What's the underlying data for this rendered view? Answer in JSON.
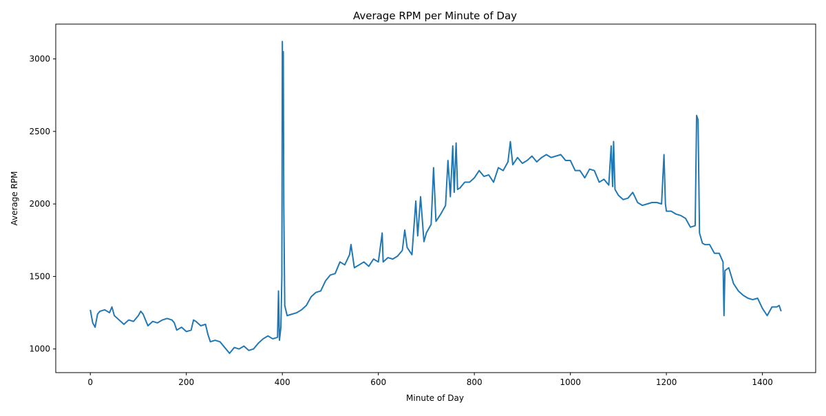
{
  "chart_data": {
    "type": "line",
    "title": "Average RPM per Minute of Day",
    "xlabel": "Minute of Day",
    "ylabel": "Average RPM",
    "x": [
      0,
      5,
      10,
      15,
      20,
      30,
      40,
      45,
      50,
      60,
      70,
      80,
      90,
      100,
      105,
      110,
      120,
      130,
      140,
      150,
      160,
      170,
      175,
      180,
      190,
      200,
      210,
      215,
      220,
      230,
      240,
      245,
      250,
      260,
      270,
      280,
      290,
      300,
      310,
      320,
      330,
      340,
      350,
      360,
      370,
      380,
      390,
      392,
      394,
      397,
      399,
      400,
      401,
      402,
      403,
      405,
      410,
      420,
      430,
      440,
      450,
      460,
      470,
      480,
      490,
      500,
      510,
      520,
      530,
      540,
      543,
      550,
      560,
      570,
      580,
      590,
      600,
      608,
      610,
      620,
      630,
      640,
      650,
      655,
      660,
      670,
      678,
      682,
      688,
      695,
      700,
      710,
      715,
      720,
      730,
      740,
      745,
      750,
      755,
      758,
      762,
      765,
      770,
      780,
      790,
      800,
      810,
      820,
      830,
      840,
      850,
      860,
      870,
      875,
      880,
      890,
      900,
      910,
      920,
      930,
      940,
      950,
      960,
      970,
      980,
      990,
      1000,
      1010,
      1020,
      1030,
      1040,
      1050,
      1060,
      1070,
      1080,
      1085,
      1088,
      1090,
      1093,
      1100,
      1110,
      1120,
      1130,
      1140,
      1150,
      1160,
      1170,
      1180,
      1190,
      1195,
      1198,
      1200,
      1210,
      1220,
      1230,
      1240,
      1250,
      1260,
      1263,
      1266,
      1269,
      1275,
      1280,
      1290,
      1300,
      1310,
      1318,
      1320,
      1322,
      1330,
      1340,
      1350,
      1360,
      1370,
      1380,
      1390,
      1400,
      1410,
      1420,
      1430,
      1435,
      1439
    ],
    "series": [
      {
        "name": "Average RPM",
        "color": "#1f77b4",
        "values": [
          1270,
          1180,
          1150,
          1240,
          1260,
          1270,
          1250,
          1290,
          1230,
          1200,
          1170,
          1200,
          1190,
          1230,
          1260,
          1240,
          1160,
          1190,
          1180,
          1200,
          1210,
          1200,
          1180,
          1130,
          1150,
          1120,
          1130,
          1200,
          1190,
          1160,
          1170,
          1100,
          1050,
          1060,
          1050,
          1010,
          970,
          1010,
          1000,
          1020,
          990,
          1000,
          1040,
          1070,
          1090,
          1070,
          1080,
          1400,
          1060,
          1150,
          1500,
          3120,
          2600,
          3050,
          2000,
          1300,
          1230,
          1240,
          1250,
          1270,
          1300,
          1360,
          1390,
          1400,
          1470,
          1510,
          1520,
          1600,
          1580,
          1650,
          1720,
          1560,
          1580,
          1600,
          1570,
          1620,
          1600,
          1800,
          1600,
          1630,
          1620,
          1640,
          1680,
          1820,
          1700,
          1650,
          2020,
          1780,
          2050,
          1740,
          1800,
          1860,
          2250,
          1880,
          1930,
          1990,
          2300,
          2050,
          2400,
          2080,
          2420,
          2100,
          2110,
          2150,
          2150,
          2180,
          2230,
          2190,
          2200,
          2150,
          2250,
          2230,
          2290,
          2430,
          2270,
          2320,
          2280,
          2300,
          2330,
          2290,
          2320,
          2340,
          2320,
          2330,
          2340,
          2300,
          2300,
          2230,
          2230,
          2180,
          2240,
          2230,
          2150,
          2170,
          2130,
          2400,
          2120,
          2430,
          2100,
          2060,
          2030,
          2040,
          2080,
          2010,
          1990,
          2000,
          2010,
          2010,
          2000,
          2340,
          2000,
          1950,
          1950,
          1930,
          1920,
          1900,
          1840,
          1850,
          2610,
          2580,
          1800,
          1730,
          1720,
          1720,
          1660,
          1660,
          1600,
          1230,
          1540,
          1560,
          1450,
          1400,
          1370,
          1350,
          1340,
          1350,
          1280,
          1230,
          1290,
          1290,
          1300,
          1260
        ]
      }
    ],
    "xlim": [
      -72,
      1511
    ],
    "xticks": [
      0,
      200,
      400,
      600,
      800,
      1000,
      1200,
      1400
    ],
    "ylim": [
      837,
      3240
    ],
    "yticks": [
      1000,
      1500,
      2000,
      2500,
      3000
    ]
  }
}
